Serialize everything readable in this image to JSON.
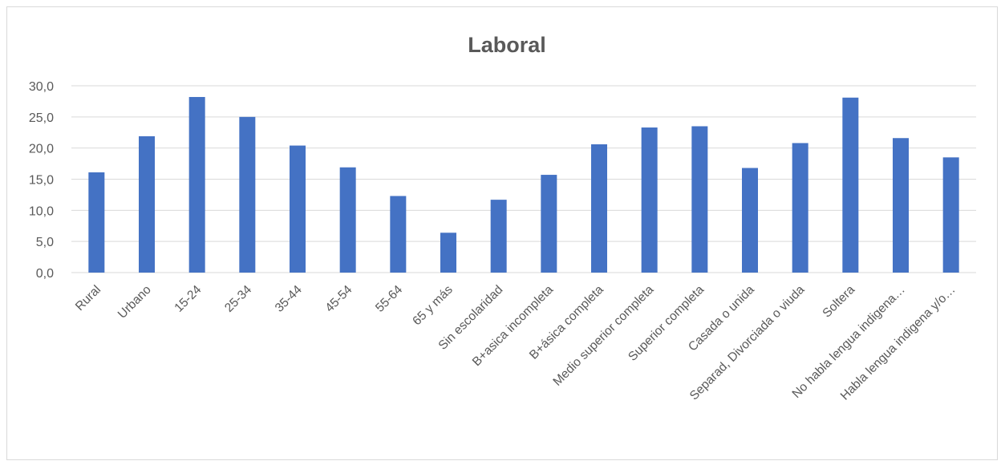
{
  "chart_data": {
    "type": "bar",
    "title": "Laboral",
    "categories": [
      "Rural",
      "Urbano",
      "15-24",
      "25-34",
      "35-44",
      "45-54",
      "55-64",
      "65 y más",
      "Sin escolaridad",
      "B+asica incompleta",
      "B+ásica completa",
      "Medio superior completa",
      "Superior completa",
      "Casada o unida",
      "Separad, Divorciada o viuda",
      "Soltera",
      "No habla lengua indigena…",
      "Habla lengua indigena y/o…"
    ],
    "values": [
      16.1,
      21.9,
      28.2,
      25.0,
      20.4,
      16.9,
      12.3,
      6.4,
      11.7,
      15.7,
      20.6,
      23.3,
      23.5,
      16.8,
      20.8,
      28.1,
      21.6,
      18.5
    ],
    "yticks": [
      "0,0",
      "5,0",
      "10,0",
      "15,0",
      "20,0",
      "25,0",
      "30,0"
    ],
    "ylim": [
      0,
      30
    ],
    "grid": true,
    "legend": "none",
    "bar_color": "#4472c4"
  }
}
